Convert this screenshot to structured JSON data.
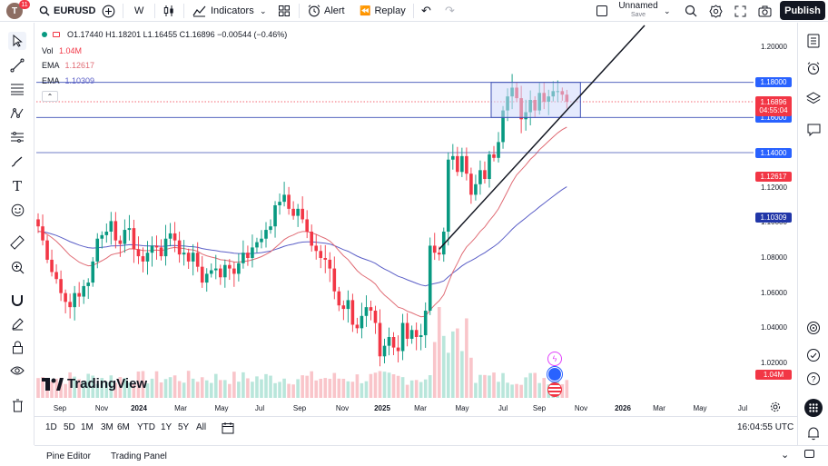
{
  "topbar": {
    "avatar_letter": "T",
    "avatar_badge": "11",
    "symbol": "EURUSD",
    "interval": "W",
    "indicators": "Indicators",
    "alert": "Alert",
    "replay": "Replay",
    "layout_name": "Unnamed",
    "layout_status": "Save",
    "publish": "Publish"
  },
  "legend": {
    "ohlc": "O1.17440 H1.18201 L1.16455 C1.16896 −0.00544 (−0.46%)",
    "vol_label": "Vol",
    "vol_value": "1.04M",
    "ema1_label": "EMA",
    "ema1_value": "1.12617",
    "ema2_label": "EMA",
    "ema2_value": "1.10309"
  },
  "colors": {
    "up": "#089981",
    "down": "#f23645",
    "ema_fast": "#e06c75",
    "ema_slow": "#5b5fc7",
    "hline": "#2962ff",
    "box_fill": "#cfd8fc",
    "trendline": "#131722"
  },
  "chart_data": {
    "type": "candlestick",
    "symbol": "EURUSD",
    "interval": "W",
    "ylim": [
      1.005,
      1.215
    ],
    "y_ticks": [
      "1.20000",
      "1.12000",
      "1.10000",
      "1.08000",
      "1.06000",
      "1.04000",
      "1.02000"
    ],
    "x_ticks": [
      "Sep",
      "Nov",
      "2024",
      "Mar",
      "May",
      "Jul",
      "Sep",
      "Nov",
      "2025",
      "Mar",
      "May",
      "Jul",
      "Sep",
      "Nov",
      "2026",
      "Mar",
      "May",
      "Jul"
    ],
    "last_price": "1.16896",
    "countdown": "04:55:04",
    "levels": [
      "1.18000",
      "1.16000",
      "1.14000"
    ],
    "ema_fast_value": "1.12617",
    "ema_slow_value": "1.10309",
    "volume_value": "1.04M",
    "close": [
      1.098,
      1.09,
      1.079,
      1.072,
      1.068,
      1.06,
      1.055,
      1.052,
      1.06,
      1.058,
      1.064,
      1.066,
      1.078,
      1.091,
      1.093,
      1.095,
      1.101,
      1.09,
      1.088,
      1.096,
      1.097,
      1.085,
      1.081,
      1.078,
      1.083,
      1.087,
      1.086,
      1.081,
      1.091,
      1.094,
      1.09,
      1.082,
      1.083,
      1.078,
      1.083,
      1.075,
      1.066,
      1.071,
      1.073,
      1.074,
      1.069,
      1.076,
      1.074,
      1.071,
      1.077,
      1.083,
      1.08,
      1.086,
      1.089,
      1.091,
      1.096,
      1.098,
      1.11,
      1.112,
      1.116,
      1.108,
      1.104,
      1.108,
      1.102,
      1.095,
      1.087,
      1.084,
      1.08,
      1.079,
      1.074,
      1.061,
      1.053,
      1.051,
      1.056,
      1.042,
      1.04,
      1.047,
      1.052,
      1.05,
      1.043,
      1.024,
      1.03,
      1.035,
      1.029,
      1.027,
      1.043,
      1.034,
      1.039,
      1.035,
      1.036,
      1.05,
      1.087,
      1.083,
      1.082,
      1.095,
      1.136,
      1.138,
      1.129,
      1.138,
      1.128,
      1.116,
      1.122,
      1.13,
      1.125,
      1.139,
      1.137,
      1.146,
      1.164,
      1.172,
      1.177,
      1.171,
      1.159,
      1.163,
      1.17,
      1.164,
      1.174,
      1.169,
      1.172,
      1.175,
      1.175,
      1.173,
      1.169
    ],
    "volume_scale": "relative"
  },
  "timeframes": [
    "1D",
    "5D",
    "1M",
    "3M",
    "6M",
    "YTD",
    "1Y",
    "5Y",
    "All"
  ],
  "clock": "16:04:55 UTC",
  "footer": {
    "pine": "Pine Editor",
    "trading": "Trading Panel"
  },
  "brand": "TradingView",
  "icons": {
    "left": [
      "cursor-icon",
      "trendline-icon",
      "fib-icon",
      "pattern-icon",
      "measure-icon",
      "brush-icon",
      "text-icon",
      "emoji-icon",
      "ruler-icon",
      "zoom-icon",
      "magnet-icon",
      "lock-edit-icon",
      "lock-icon",
      "eye-icon",
      "trash-icon"
    ],
    "right": [
      "watchlist-icon",
      "alarm-icon",
      "layers-icon",
      "chat-icon",
      "target-icon",
      "ideas-icon",
      "help-icon",
      "apps-icon",
      "notifications-icon"
    ]
  }
}
